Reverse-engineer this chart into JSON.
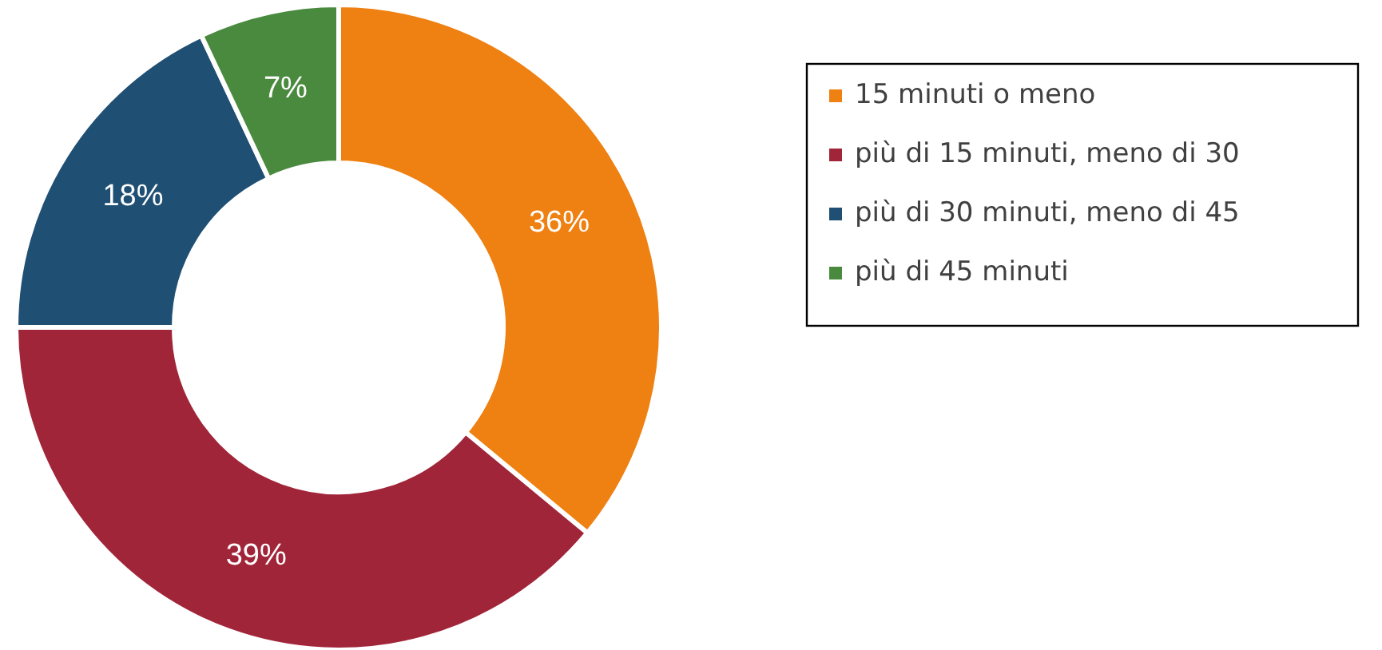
{
  "chart_data": {
    "type": "donut",
    "categories": [
      "15 minuti o meno",
      "più di 15 minuti, meno di 30",
      "più di 30 minuti, meno di 45",
      "più di 45 minuti"
    ],
    "values": [
      36,
      39,
      18,
      7
    ],
    "value_labels": [
      "36%",
      "39%",
      "18%",
      "7%"
    ],
    "colors": [
      "#ef8012",
      "#a12539",
      "#1f4f73",
      "#4a8a3f"
    ],
    "legend": "right"
  }
}
